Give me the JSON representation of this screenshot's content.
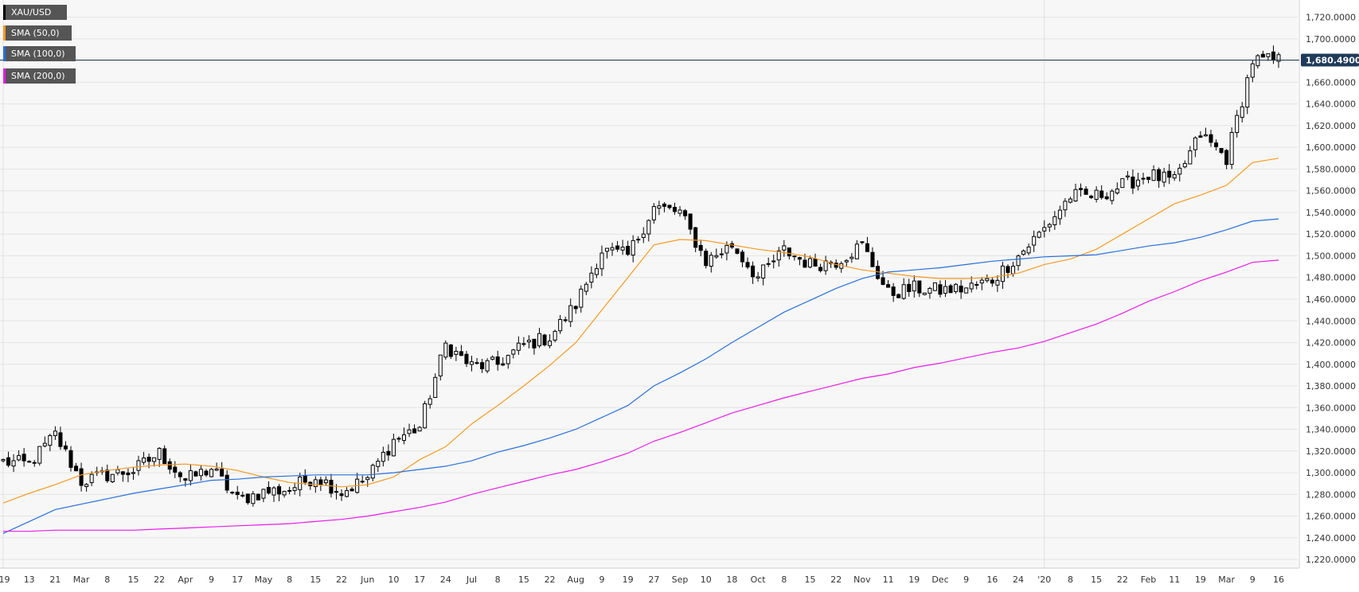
{
  "legend": [
    {
      "label": "XAU/USD",
      "color": "#000000"
    },
    {
      "label": "SMA (50,0)",
      "color": "#f59a23"
    },
    {
      "label": "SMA (100,0)",
      "color": "#2a6fdb"
    },
    {
      "label": "SMA (200,0)",
      "color": "#e81ce8"
    }
  ],
  "current_price": {
    "label": "1,680.4900",
    "value": 1680.49
  },
  "colors": {
    "plot_bg": "#f7f7f7",
    "grid": "#e6e6e6",
    "candle": "#000000",
    "price_line": "#1f3b5a",
    "price_tag": "#1f3b5a"
  },
  "chart_data": {
    "type": "candlestick",
    "title": "",
    "ylim": [
      1212,
      1730
    ],
    "y_ticks": [
      "1,220.0000",
      "1,240.0000",
      "1,260.0000",
      "1,280.0000",
      "1,300.0000",
      "1,320.0000",
      "1,340.0000",
      "1,360.0000",
      "1,380.0000",
      "1,400.0000",
      "1,420.0000",
      "1,440.0000",
      "1,460.0000",
      "1,480.0000",
      "1,500.0000",
      "1,520.0000",
      "1,540.0000",
      "1,560.0000",
      "1,580.0000",
      "1,600.0000",
      "1,620.0000",
      "1,640.0000",
      "1,660.0000",
      "1,680.0000",
      "1,700.0000",
      "1,720.0000"
    ],
    "x_ticks": [
      "'19",
      "13",
      "21",
      "Mar",
      "8",
      "15",
      "22",
      "Apr",
      "9",
      "17",
      "May",
      "8",
      "15",
      "22",
      "Jun",
      "10",
      "17",
      "24",
      "Jul",
      "8",
      "15",
      "22",
      "Aug",
      "9",
      "19",
      "27",
      "Sep",
      "10",
      "18",
      "Oct",
      "8",
      "15",
      "22",
      "Nov",
      "11",
      "19",
      "Dec",
      "9",
      "16",
      "24",
      "'20",
      "8",
      "15",
      "22",
      "Feb",
      "11",
      "19",
      "Mar",
      "9",
      "16"
    ],
    "close_anchors": [
      [
        "'19",
        1310
      ],
      [
        "13",
        1308
      ],
      [
        "21",
        1335
      ],
      [
        "Mar",
        1292
      ],
      [
        "8",
        1298
      ],
      [
        "15",
        1302
      ],
      [
        "22",
        1318
      ],
      [
        "Apr",
        1293
      ],
      [
        "9",
        1304
      ],
      [
        "17",
        1275
      ],
      [
        "May",
        1282
      ],
      [
        "8",
        1285
      ],
      [
        "15",
        1297
      ],
      [
        "22",
        1282
      ],
      [
        "Jun",
        1295
      ],
      [
        "10",
        1330
      ],
      [
        "17",
        1342
      ],
      [
        "24",
        1418
      ],
      [
        "Jul",
        1398
      ],
      [
        "8",
        1400
      ],
      [
        "15",
        1418
      ],
      [
        "22",
        1425
      ],
      [
        "Aug",
        1455
      ],
      [
        "9",
        1505
      ],
      [
        "19",
        1500
      ],
      [
        "27",
        1545
      ],
      [
        "Sep",
        1540
      ],
      [
        "10",
        1495
      ],
      [
        "18",
        1510
      ],
      [
        "Oct",
        1480
      ],
      [
        "8",
        1505
      ],
      [
        "15",
        1492
      ],
      [
        "22",
        1495
      ],
      [
        "Nov",
        1510
      ],
      [
        "11",
        1465
      ],
      [
        "19",
        1470
      ],
      [
        "Dec",
        1468
      ],
      [
        "9",
        1470
      ],
      [
        "16",
        1478
      ],
      [
        "24",
        1500
      ],
      [
        "'20",
        1525
      ],
      [
        "8",
        1555
      ],
      [
        "15",
        1555
      ],
      [
        "22",
        1565
      ],
      [
        "Feb",
        1575
      ],
      [
        "11",
        1568
      ],
      [
        "19",
        1612
      ],
      [
        "Mar",
        1590
      ],
      [
        "9",
        1680
      ],
      [
        "16",
        1680
      ]
    ],
    "series": [
      {
        "name": "SMA (50,0)",
        "values": [
          1272,
          1281,
          1289,
          1298,
          1302,
          1305,
          1307,
          1308,
          1306,
          1302,
          1296,
          1291,
          1289,
          1287,
          1289,
          1296,
          1312,
          1324,
          1345,
          1362,
          1380,
          1399,
          1420,
          1450,
          1480,
          1510,
          1515,
          1514,
          1510,
          1506,
          1503,
          1499,
          1492,
          1487,
          1484,
          1481,
          1479,
          1479,
          1480,
          1484,
          1492,
          1497,
          1506,
          1520,
          1534,
          1548,
          1556,
          1565,
          1586,
          1590
        ]
      },
      {
        "name": "SMA (100,0)",
        "values": [
          1244,
          1255,
          1266,
          1271,
          1276,
          1281,
          1285,
          1289,
          1293,
          1294,
          1296,
          1297,
          1298,
          1298,
          1298,
          1300,
          1303,
          1306,
          1311,
          1319,
          1325,
          1332,
          1340,
          1351,
          1362,
          1380,
          1392,
          1405,
          1420,
          1434,
          1448,
          1459,
          1470,
          1479,
          1485,
          1487,
          1489,
          1492,
          1495,
          1497,
          1499,
          1500,
          1501,
          1505,
          1509,
          1512,
          1517,
          1524,
          1532,
          1534
        ]
      },
      {
        "name": "SMA (200,0)",
        "values": [
          1246,
          1246,
          1247,
          1247,
          1247,
          1247,
          1248,
          1249,
          1250,
          1251,
          1252,
          1253,
          1255,
          1257,
          1260,
          1264,
          1268,
          1273,
          1280,
          1286,
          1292,
          1298,
          1303,
          1310,
          1318,
          1329,
          1337,
          1346,
          1355,
          1362,
          1369,
          1375,
          1381,
          1387,
          1391,
          1397,
          1401,
          1406,
          1411,
          1415,
          1421,
          1429,
          1437,
          1447,
          1458,
          1467,
          1477,
          1485,
          1494,
          1496
        ]
      }
    ]
  }
}
